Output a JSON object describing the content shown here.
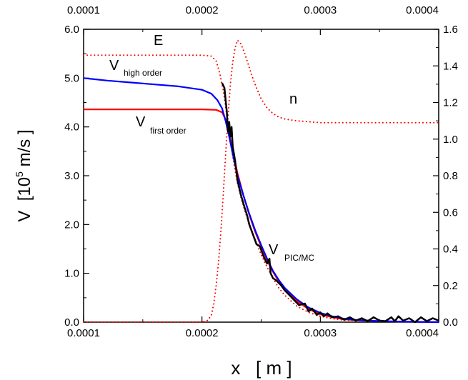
{
  "chart_data": {
    "type": "line",
    "xlabel": "x   [ m ]",
    "ylabel": {
      "prefix": "V  [10",
      "sup": "5",
      "suffix": " m/s ]"
    },
    "xlim": [
      0.0001,
      0.0004
    ],
    "ylim": [
      0,
      6
    ],
    "y2lim": [
      0,
      1.6
    ],
    "x_ticks": [
      "0.0001",
      "0.0002",
      "0.0003",
      "0.0004"
    ],
    "y_ticks": [
      "0.0",
      "1.0",
      "2.0",
      "3.0",
      "4.0",
      "5.0",
      "6.0"
    ],
    "y2_ticks": [
      "0.0",
      "0.2",
      "0.4",
      "0.6",
      "0.8",
      "1.0",
      "1.2",
      "1.4",
      "1.6"
    ],
    "grid": false,
    "series": [
      {
        "main": "V",
        "sub": "high order",
        "color": "#0000ff",
        "style": "solid",
        "axis": "left",
        "x": [
          0.0001,
          0.00012,
          0.00014,
          0.00016,
          0.00018,
          0.0002,
          0.000208,
          0.000213,
          0.000217,
          0.00022,
          0.000223,
          0.000226,
          0.00023,
          0.000235,
          0.00024,
          0.000245,
          0.00025,
          0.000255,
          0.00026,
          0.000265,
          0.00027,
          0.00028,
          0.00029,
          0.0003,
          0.00031,
          0.00032,
          0.00033,
          0.00035,
          0.00037,
          0.0004
        ],
        "y": [
          5.0,
          4.95,
          4.91,
          4.87,
          4.83,
          4.76,
          4.68,
          4.55,
          4.38,
          4.12,
          3.8,
          3.45,
          3.0,
          2.6,
          2.22,
          1.88,
          1.58,
          1.3,
          1.05,
          0.86,
          0.7,
          0.47,
          0.3,
          0.19,
          0.12,
          0.07,
          0.045,
          0.02,
          0.01,
          0.0
        ]
      },
      {
        "main": "V",
        "sub": "first order",
        "color": "#ff0000",
        "style": "solid",
        "axis": "left",
        "x": [
          0.0001,
          0.00015,
          0.0002,
          0.000212,
          0.000217,
          0.00022,
          0.000223,
          0.000226,
          0.00023,
          0.000235,
          0.00024,
          0.000245,
          0.00025,
          0.000255,
          0.00026,
          0.000265,
          0.00027,
          0.00028,
          0.00029,
          0.0003,
          0.00031,
          0.00032,
          0.00033,
          0.00035,
          0.00037,
          0.0004
        ],
        "y": [
          4.36,
          4.36,
          4.36,
          4.35,
          4.3,
          4.15,
          3.85,
          3.5,
          3.05,
          2.6,
          2.2,
          1.85,
          1.55,
          1.27,
          1.03,
          0.83,
          0.66,
          0.43,
          0.27,
          0.16,
          0.1,
          0.06,
          0.04,
          0.02,
          0.01,
          0.0
        ]
      },
      {
        "main": "V",
        "sub": "PIC/MC",
        "color": "#000000",
        "style": "solid",
        "axis": "left",
        "x": [
          0.000217,
          0.000219,
          0.000221,
          0.000222,
          0.000223,
          0.000224,
          0.000225,
          0.000226,
          0.000228,
          0.00023,
          0.000233,
          0.000236,
          0.000238,
          0.00024,
          0.000243,
          0.000246,
          0.000249,
          0.000252,
          0.000255,
          0.000257,
          0.000258,
          0.00026,
          0.000263,
          0.000267,
          0.00027,
          0.000274,
          0.000278,
          0.000282,
          0.000287,
          0.00029,
          0.000293,
          0.000297,
          0.0003,
          0.000303,
          0.000306,
          0.00031,
          0.000315,
          0.00032,
          0.000325,
          0.00033,
          0.000335,
          0.00034,
          0.000345,
          0.00035,
          0.000355,
          0.00036,
          0.000363,
          0.000366,
          0.00037,
          0.000375,
          0.00038,
          0.000385,
          0.00039,
          0.000395,
          0.0004
        ],
        "y": [
          4.9,
          4.8,
          4.3,
          3.9,
          4.1,
          3.8,
          4.0,
          3.6,
          3.3,
          2.9,
          2.6,
          2.35,
          2.2,
          2.0,
          1.8,
          1.6,
          1.55,
          1.35,
          1.2,
          1.3,
          1.0,
          0.9,
          0.85,
          0.75,
          0.65,
          0.55,
          0.45,
          0.35,
          0.38,
          0.22,
          0.28,
          0.15,
          0.2,
          0.12,
          0.18,
          0.1,
          0.12,
          0.05,
          0.1,
          0.03,
          0.08,
          0.02,
          0.1,
          0.03,
          0.02,
          0.1,
          0.02,
          0.12,
          0.03,
          0.08,
          0.0,
          0.1,
          0.02,
          0.08,
          0.03
        ]
      },
      {
        "main": "E",
        "sub": "",
        "color": "#ff0000",
        "style": "dotted",
        "axis": "left",
        "x": [
          0.0001,
          0.00015,
          0.0002,
          0.000208,
          0.000212,
          0.000215,
          0.000218,
          0.00022,
          0.000222,
          0.000224,
          0.000226,
          0.000228,
          0.00023,
          0.000233,
          0.000236,
          0.00024,
          0.000244,
          0.000248,
          0.000252,
          0.000256,
          0.00026,
          0.000265,
          0.00027,
          0.00028,
          0.00029,
          0.0003,
          0.00031,
          0.00032,
          0.0004
        ],
        "y": [
          5.47,
          5.47,
          5.47,
          5.45,
          5.35,
          5.1,
          4.75,
          4.4,
          4.05,
          3.7,
          3.4,
          3.1,
          2.85,
          2.55,
          2.3,
          2.0,
          1.75,
          1.5,
          1.28,
          1.08,
          0.9,
          0.7,
          0.55,
          0.33,
          0.2,
          0.12,
          0.07,
          0.04,
          0.0
        ]
      },
      {
        "main": "n",
        "sub": "",
        "color": "#ff0000",
        "style": "dotted",
        "axis": "right",
        "x": [
          0.0001,
          0.00015,
          0.0002,
          0.000205,
          0.000208,
          0.00021,
          0.000212,
          0.000214,
          0.000216,
          0.000218,
          0.00022,
          0.000222,
          0.000224,
          0.000226,
          0.000228,
          0.00023,
          0.000233,
          0.000236,
          0.000239,
          0.000242,
          0.000246,
          0.00025,
          0.000255,
          0.00026,
          0.000265,
          0.00027,
          0.00028,
          0.00029,
          0.0003,
          0.00032,
          0.00035,
          0.0004
        ],
        "y": [
          0.0,
          0.0,
          0.0,
          0.01,
          0.04,
          0.1,
          0.2,
          0.33,
          0.5,
          0.7,
          0.92,
          1.12,
          1.3,
          1.42,
          1.5,
          1.54,
          1.52,
          1.47,
          1.41,
          1.35,
          1.28,
          1.22,
          1.17,
          1.14,
          1.12,
          1.11,
          1.1,
          1.095,
          1.09,
          1.09,
          1.09,
          1.09
        ]
      }
    ]
  }
}
